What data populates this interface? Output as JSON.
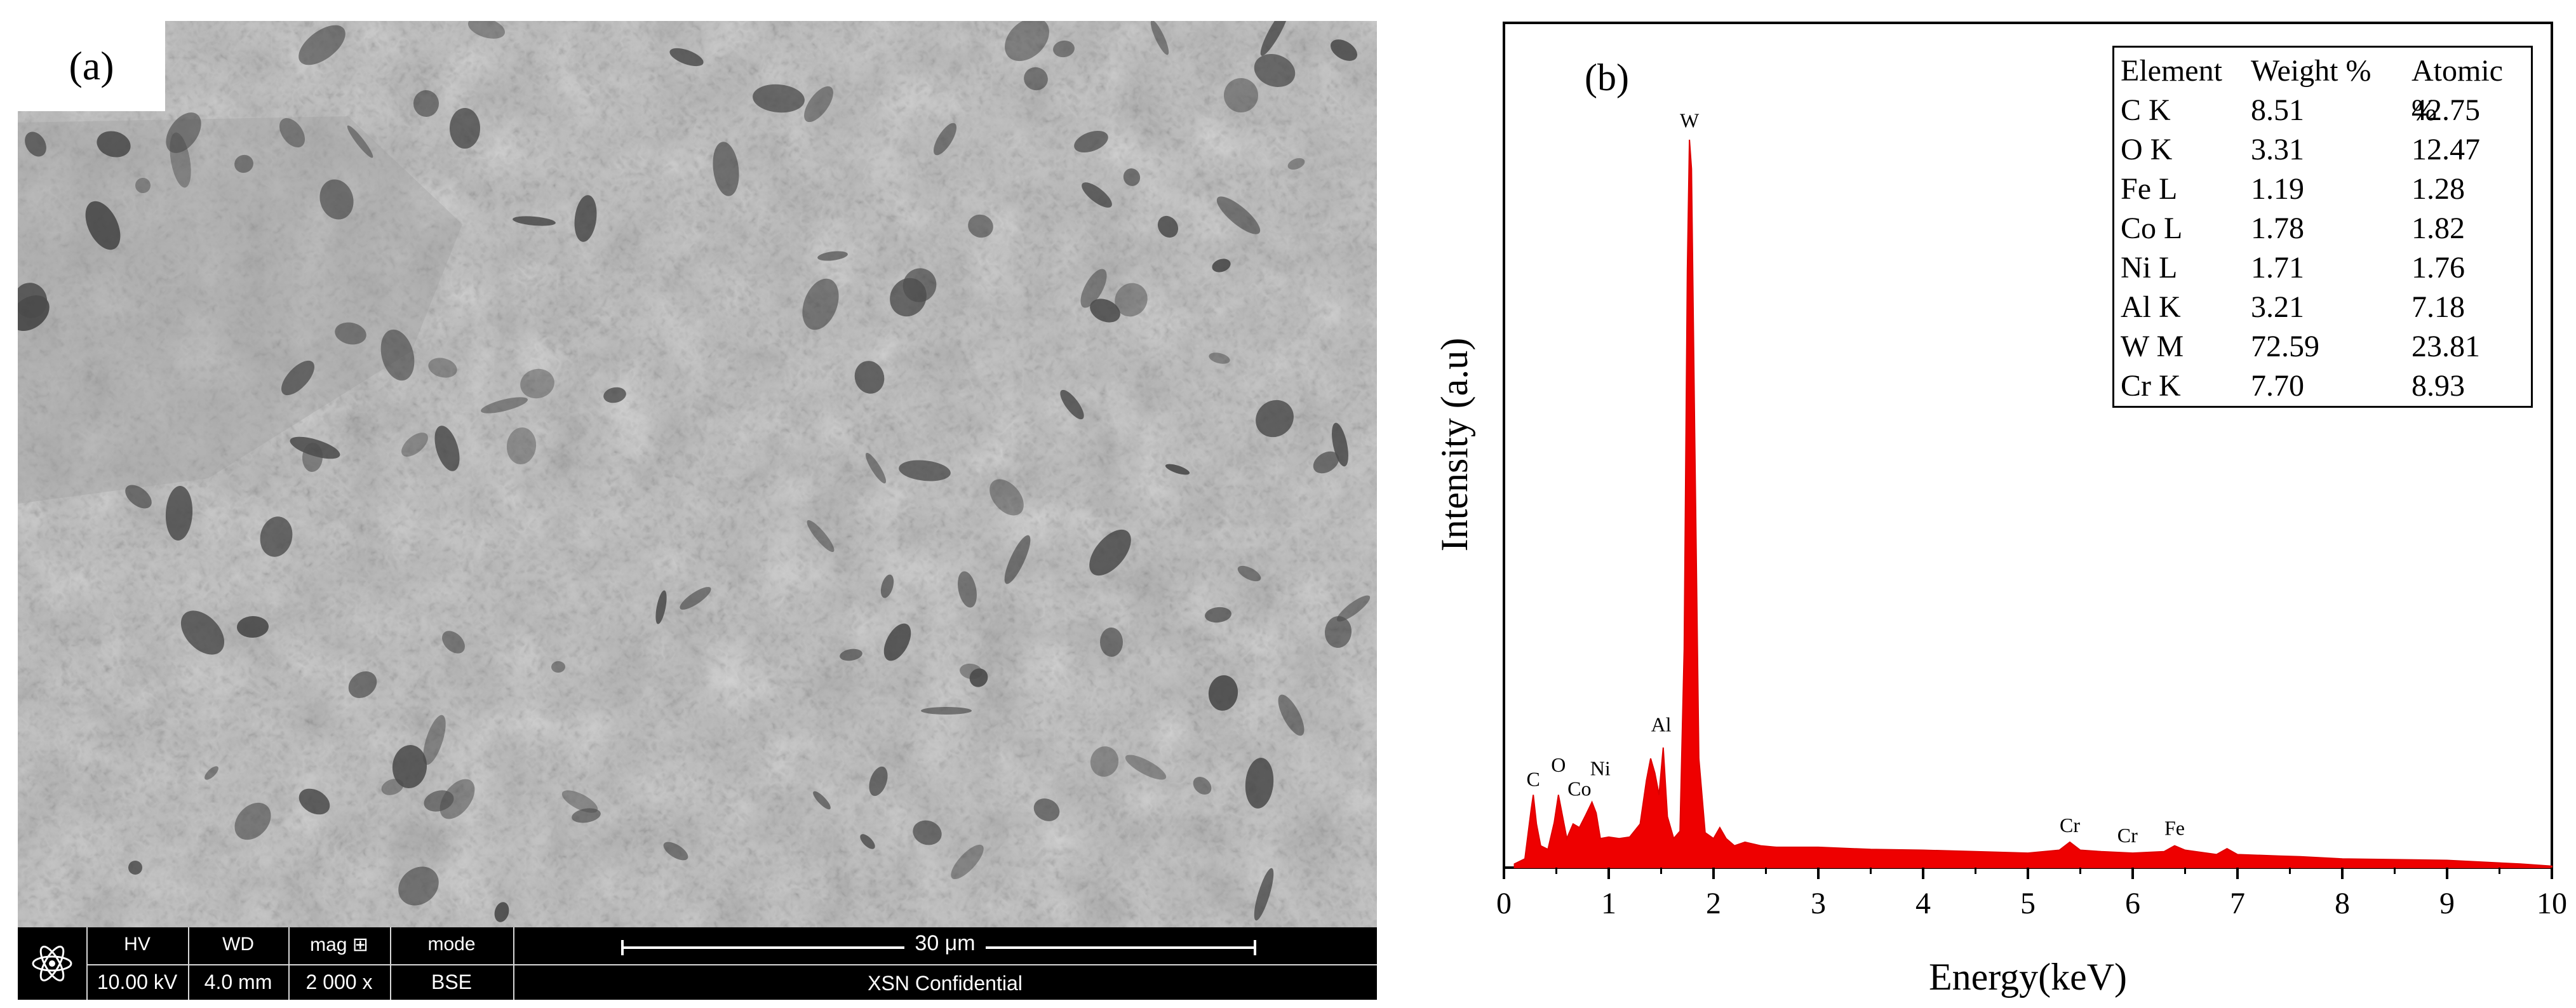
{
  "panel_a": {
    "label": "(a)",
    "info_bar": {
      "hv": {
        "label": "HV",
        "value": "10.00 kV"
      },
      "wd": {
        "label": "WD",
        "value": "4.0 mm"
      },
      "mag": {
        "label": "mag ⊞",
        "value": "2 000 x"
      },
      "mode": {
        "label": "mode",
        "value": "BSE"
      },
      "scale_bar_label": "30 μm",
      "footer": "XSN Confidential",
      "logo_icon": "atom-logo-icon"
    }
  },
  "panel_b": {
    "label": "(b)",
    "table": {
      "headers": [
        "Element",
        "Weight %",
        "Atomic %"
      ],
      "rows": [
        [
          "C   K",
          "8.51",
          "42.75"
        ],
        [
          "O   K",
          "3.31",
          "12.47"
        ],
        [
          "Fe  L",
          "1.19",
          "1.28"
        ],
        [
          "Co L",
          "1.78",
          "1.82"
        ],
        [
          "Ni  L",
          "1.71",
          "1.76"
        ],
        [
          "Al  K",
          "3.21",
          "7.18"
        ],
        [
          "W   M",
          "72.59",
          "23.81"
        ],
        [
          "Cr  K",
          "7.70",
          "8.93"
        ]
      ]
    }
  },
  "chart_data": {
    "type": "area",
    "xlabel": "Energy(keV)",
    "ylabel": "Intensity (a.u)",
    "xlim": [
      0,
      10
    ],
    "ylim": [
      0,
      1000
    ],
    "x_ticks": [
      "0",
      "1",
      "2",
      "3",
      "4",
      "5",
      "6",
      "7",
      "8",
      "9",
      "10"
    ],
    "fill_color": "#ee0000",
    "spectrum": {
      "x": [
        0.1,
        0.2,
        0.26,
        0.28,
        0.31,
        0.35,
        0.42,
        0.48,
        0.52,
        0.56,
        0.6,
        0.66,
        0.72,
        0.78,
        0.84,
        0.88,
        0.92,
        1.0,
        1.1,
        1.2,
        1.3,
        1.36,
        1.4,
        1.44,
        1.48,
        1.52,
        1.56,
        1.62,
        1.68,
        1.72,
        1.75,
        1.77,
        1.79,
        1.82,
        1.86,
        1.92,
        2.0,
        2.06,
        2.12,
        2.2,
        2.3,
        2.45,
        2.6,
        3.0,
        3.5,
        4.0,
        4.5,
        5.0,
        5.3,
        5.4,
        5.5,
        5.7,
        6.0,
        6.3,
        6.4,
        6.5,
        6.8,
        6.9,
        7.0,
        7.4,
        7.6,
        8.0,
        9.0,
        9.7,
        10.0
      ],
      "y": [
        5,
        12,
        80,
        100,
        60,
        30,
        25,
        62,
        100,
        70,
        40,
        60,
        55,
        72,
        90,
        75,
        40,
        42,
        40,
        42,
        60,
        120,
        150,
        130,
        100,
        165,
        70,
        40,
        50,
        300,
        820,
        1000,
        960,
        600,
        150,
        48,
        40,
        55,
        40,
        30,
        35,
        30,
        28,
        28,
        25,
        24,
        22,
        20,
        24,
        35,
        24,
        22,
        20,
        22,
        30,
        24,
        18,
        26,
        18,
        16,
        15,
        12,
        10,
        5,
        2
      ]
    },
    "peak_labels": [
      {
        "text": "C",
        "x": 0.28,
        "y": 105
      },
      {
        "text": "O",
        "x": 0.52,
        "y": 125
      },
      {
        "text": "Co",
        "x": 0.72,
        "y": 92
      },
      {
        "text": "Ni",
        "x": 0.92,
        "y": 120
      },
      {
        "text": "Al",
        "x": 1.5,
        "y": 180
      },
      {
        "text": "W",
        "x": 1.77,
        "y": 1010
      },
      {
        "text": "Cr",
        "x": 5.4,
        "y": 42
      },
      {
        "text": "Cr",
        "x": 5.95,
        "y": 28
      },
      {
        "text": "Fe",
        "x": 6.4,
        "y": 38
      }
    ]
  }
}
